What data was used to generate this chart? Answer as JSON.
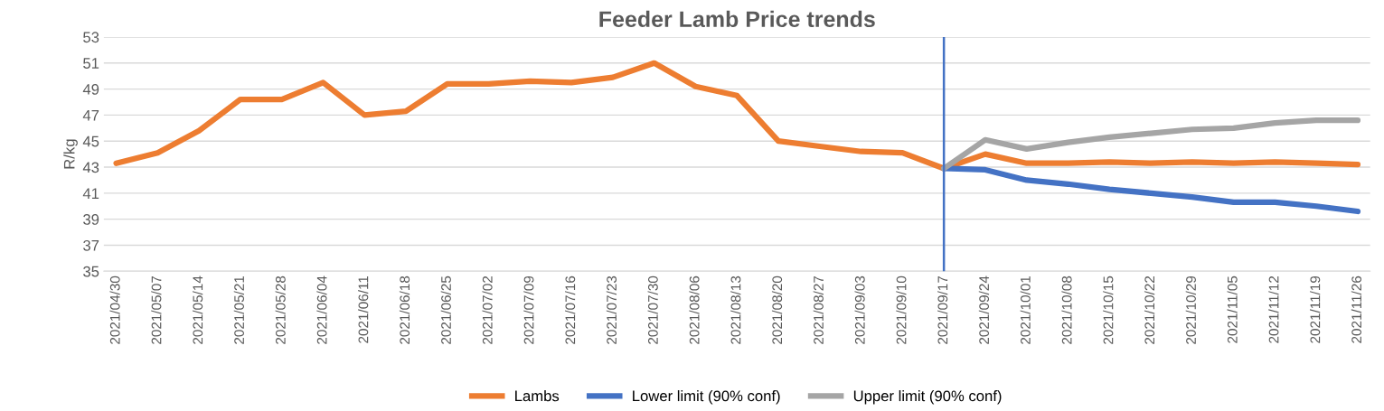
{
  "chart_data": {
    "type": "line",
    "title": "Feeder Lamb Price trends",
    "ylabel": "R/kg",
    "categories": [
      "2021/04/30",
      "2021/05/07",
      "2021/05/14",
      "2021/05/21",
      "2021/05/28",
      "2021/06/04",
      "2021/06/11",
      "2021/06/18",
      "2021/06/25",
      "2021/07/02",
      "2021/07/09",
      "2021/07/16",
      "2021/07/23",
      "2021/07/30",
      "2021/08/06",
      "2021/08/13",
      "2021/08/20",
      "2021/08/27",
      "2021/09/03",
      "2021/09/10",
      "2021/09/17",
      "2021/09/24",
      "2021/10/01",
      "2021/10/08",
      "2021/10/15",
      "2021/10/22",
      "2021/10/29",
      "2021/11/05",
      "2021/11/12",
      "2021/11/19",
      "2021/11/26"
    ],
    "series": [
      {
        "name": "Lambs",
        "color": "#ed7d31",
        "values": [
          43.3,
          44.1,
          45.8,
          48.2,
          48.2,
          49.5,
          47.0,
          47.3,
          49.4,
          49.4,
          49.6,
          49.5,
          49.9,
          51.0,
          49.2,
          48.5,
          45.0,
          44.6,
          44.2,
          44.1,
          42.9,
          44.0,
          43.3,
          43.3,
          43.4,
          43.3,
          43.4,
          43.3,
          43.4,
          43.3,
          43.2
        ]
      },
      {
        "name": "Lower limit (90% conf)",
        "color": "#4472c4",
        "values": [
          null,
          null,
          null,
          null,
          null,
          null,
          null,
          null,
          null,
          null,
          null,
          null,
          null,
          null,
          null,
          null,
          null,
          null,
          null,
          null,
          42.9,
          42.8,
          42.0,
          41.7,
          41.3,
          41.0,
          40.7,
          40.3,
          40.3,
          40.0,
          39.6
        ]
      },
      {
        "name": "Upper limit (90% conf)",
        "color": "#a5a5a5",
        "values": [
          null,
          null,
          null,
          null,
          null,
          null,
          null,
          null,
          null,
          null,
          null,
          null,
          null,
          null,
          null,
          null,
          null,
          null,
          null,
          null,
          42.9,
          45.1,
          44.4,
          44.9,
          45.3,
          45.6,
          45.9,
          46.0,
          46.4,
          46.6,
          46.6
        ]
      }
    ],
    "ylim": [
      35,
      53
    ],
    "yticks": [
      35,
      37,
      39,
      41,
      43,
      45,
      47,
      49,
      51,
      53
    ],
    "grid": "y",
    "legend": "bottom",
    "marker": "none",
    "line_style": "solid",
    "ref_lines": [
      {
        "axis": "x",
        "value": "2021/09/17",
        "color": "#4472c4",
        "line_style": "solid"
      }
    ]
  }
}
